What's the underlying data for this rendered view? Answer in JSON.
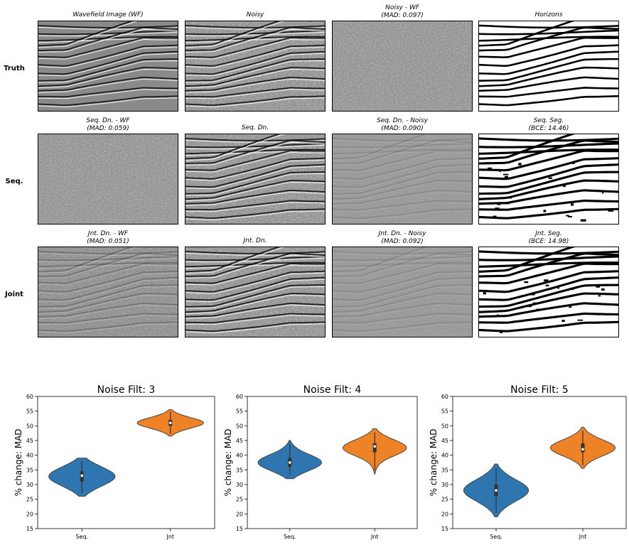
{
  "rows": [
    {
      "label": "Truth",
      "panels": [
        {
          "title": "Wavefield Image (WF)",
          "kind": "wavefield"
        },
        {
          "title": "Noisy",
          "kind": "noisy"
        },
        {
          "title": "Noisy - WF\n(MAD: 0.097)",
          "kind": "noise"
        },
        {
          "title": "Horizons",
          "kind": "horizon"
        }
      ]
    },
    {
      "label": "Seq.",
      "panels": [
        {
          "title": "Seq. Dn. - WF\n(MAD: 0.059)",
          "kind": "noise"
        },
        {
          "title": "Seq. Dn.",
          "kind": "denoised"
        },
        {
          "title": "Seq. Dn. - Noisy\n(MAD: 0.090)",
          "kind": "finenoise"
        },
        {
          "title": "Seq. Seg.\n(BCE: 14.46)",
          "kind": "seg"
        }
      ]
    },
    {
      "label": "Joint",
      "panels": [
        {
          "title": "Jnt. Dn. - WF\n(MAD: 0.051)",
          "kind": "residual"
        },
        {
          "title": "Jnt. Dn.",
          "kind": "denoised"
        },
        {
          "title": "Jnt. Dn. - Noisy\n(MAD: 0.092)",
          "kind": "finenoise"
        },
        {
          "title": "Jnt. Seg.\n(BCE: 14.98)",
          "kind": "seg"
        }
      ]
    }
  ],
  "colors": {
    "seq": "#2f76b0",
    "jnt": "#ee8227",
    "outline": "#444444"
  },
  "chart_data": [
    {
      "type": "violin",
      "title": "Noise Filt: 3",
      "ylabel": "% change: MAD",
      "categories": [
        "Seq.",
        "Jnt"
      ],
      "ylim": [
        15,
        60
      ],
      "yticks": [
        15,
        20,
        25,
        30,
        35,
        40,
        45,
        50,
        55,
        60
      ],
      "series": [
        {
          "category": "Seq.",
          "min": 26,
          "q1": 31,
          "median": 33,
          "q3": 34.5,
          "max": 39
        },
        {
          "category": "Jnt",
          "min": 46.5,
          "q1": 50,
          "median": 51,
          "q3": 52,
          "max": 55.5
        }
      ]
    },
    {
      "type": "violin",
      "title": "Noise Filt: 4",
      "ylabel": "% change: MAD",
      "categories": [
        "Seq.",
        "Jnt"
      ],
      "ylim": [
        15,
        60
      ],
      "yticks": [
        15,
        20,
        25,
        30,
        35,
        40,
        45,
        50,
        55,
        60
      ],
      "series": [
        {
          "category": "Seq.",
          "min": 32,
          "q1": 36,
          "median": 37.5,
          "q3": 39,
          "max": 45
        },
        {
          "category": "Jnt",
          "min": 33.5,
          "q1": 41,
          "median": 43,
          "q3": 44,
          "max": 49
        }
      ]
    },
    {
      "type": "violin",
      "title": "Noise Filt: 5",
      "ylabel": "% change: MAD",
      "categories": [
        "Seq.",
        "Jnt"
      ],
      "ylim": [
        15,
        60
      ],
      "yticks": [
        15,
        20,
        25,
        30,
        35,
        40,
        45,
        50,
        55,
        60
      ],
      "series": [
        {
          "category": "Seq.",
          "min": 19,
          "q1": 26,
          "median": 28,
          "q3": 30,
          "max": 37
        },
        {
          "category": "Jnt",
          "min": 35.5,
          "q1": 41,
          "median": 42,
          "q3": 44,
          "max": 49.5
        }
      ]
    }
  ]
}
